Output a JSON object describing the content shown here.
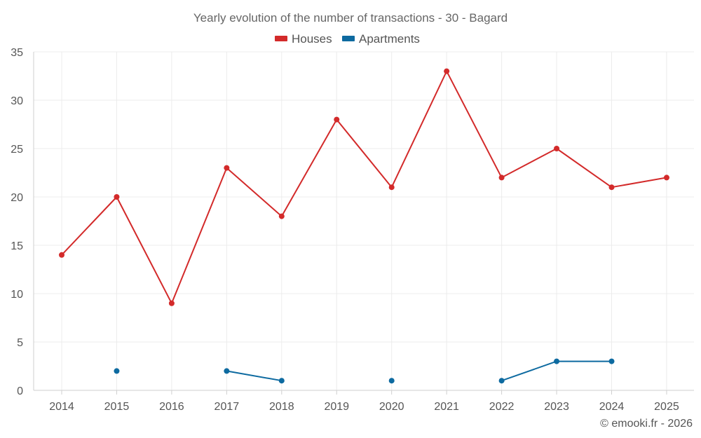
{
  "chart_data": {
    "type": "line",
    "title": "Yearly evolution of the number of transactions - 30 - Bagard",
    "categories": [
      "2014",
      "2015",
      "2016",
      "2017",
      "2018",
      "2019",
      "2020",
      "2021",
      "2022",
      "2023",
      "2024",
      "2025"
    ],
    "ylim": [
      0,
      35
    ],
    "yticks": [
      0,
      5,
      10,
      15,
      20,
      25,
      30,
      35
    ],
    "grid": true,
    "legend_position": "top-center",
    "series": [
      {
        "name": "Houses",
        "color": "#d32a2a",
        "values": [
          14,
          20,
          9,
          23,
          18,
          28,
          21,
          33,
          22,
          25,
          21,
          22
        ]
      },
      {
        "name": "Apartments",
        "color": "#0d6aa0",
        "values": [
          null,
          2,
          null,
          2,
          1,
          null,
          1,
          null,
          1,
          3,
          3,
          null
        ]
      }
    ],
    "credit": "© emooki.fr - 2026"
  }
}
